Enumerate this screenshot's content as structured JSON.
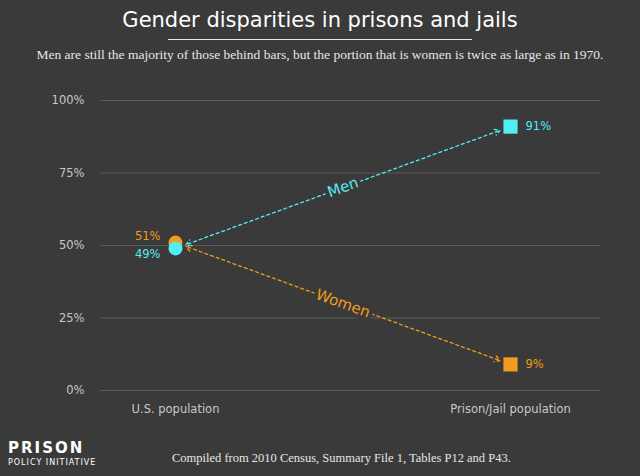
{
  "chart_data": {
    "type": "line",
    "title": "Gender disparities in prisons and jails",
    "subtitle": "Men are still the majority of those behind bars, but the portion that is women is twice as large as in 1970.",
    "caption": "Compiled from 2010 Census, Summary File 1, Tables P12 and P43.",
    "credit": "PRISON POLICY INITIATIVE",
    "categories": [
      "U.S. population",
      "Prison/Jail population"
    ],
    "series": [
      {
        "name": "Women",
        "color": "#f29b1c",
        "values": [
          51,
          9
        ],
        "value_labels": [
          "51%",
          "9%"
        ]
      },
      {
        "name": "Men",
        "color": "#52eef2",
        "values": [
          49,
          91
        ],
        "value_labels": [
          "49%",
          "91%"
        ]
      }
    ],
    "ylim": [
      0,
      100
    ],
    "yticks": [
      {
        "value": 0,
        "label": "0%"
      },
      {
        "value": 25,
        "label": "25%"
      },
      {
        "value": 50,
        "label": "50%"
      },
      {
        "value": 75,
        "label": "75%"
      },
      {
        "value": 100,
        "label": "100%"
      }
    ],
    "grid": true,
    "data_labels": true
  }
}
